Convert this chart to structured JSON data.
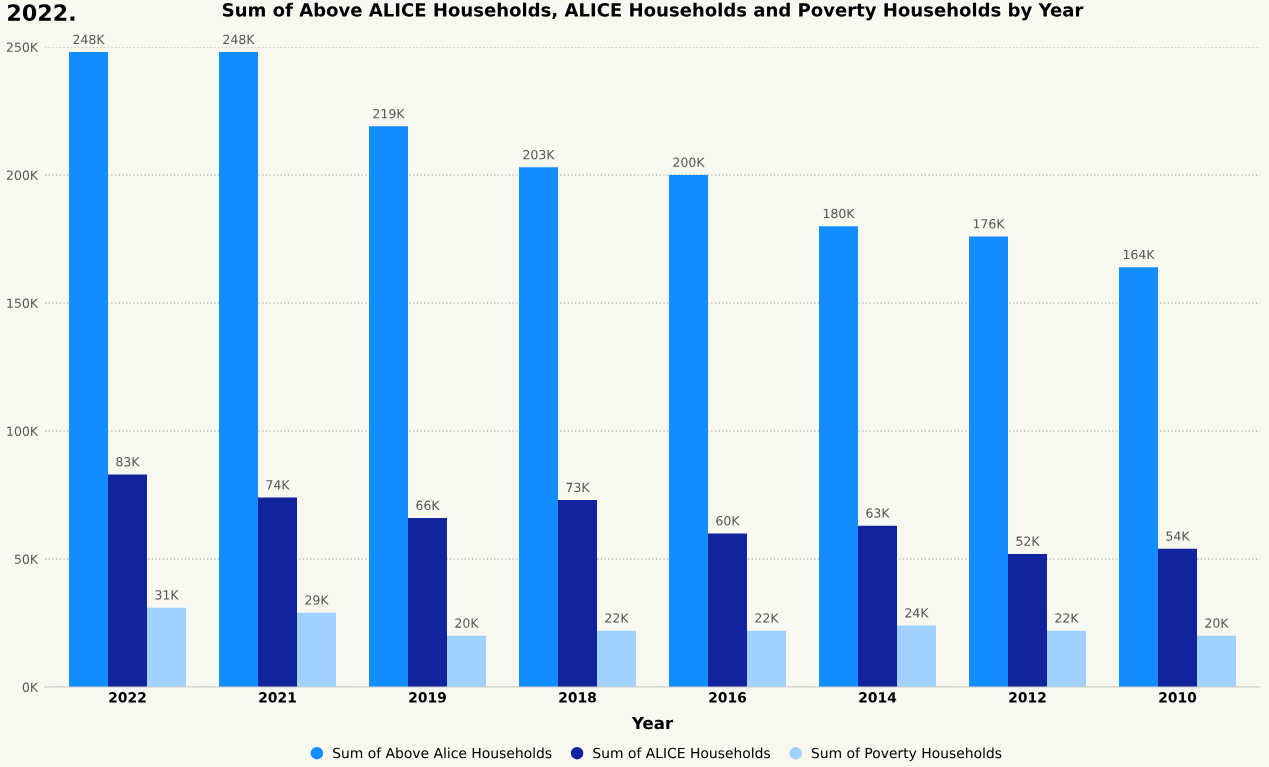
{
  "chart_data": {
    "type": "bar",
    "title": "Sum of Above ALICE Households, ALICE Households and Poverty Households by Year",
    "xlabel": "Year",
    "categories": [
      "2022",
      "2021",
      "2019",
      "2018",
      "2016",
      "2014",
      "2012",
      "2010"
    ],
    "series": [
      {
        "name": "Sum of Above Alice Households",
        "color": "#118dff",
        "values": [
          248,
          248,
          219,
          203,
          200,
          180,
          176,
          164
        ],
        "value_labels": [
          "248K",
          "248K",
          "219K",
          "203K",
          "200K",
          "180K",
          "176K",
          "164K"
        ]
      },
      {
        "name": "Sum of ALICE Households",
        "color": "#12239e",
        "values": [
          83,
          74,
          66,
          73,
          60,
          63,
          52,
          54
        ],
        "value_labels": [
          "83K",
          "74K",
          "66K",
          "73K",
          "60K",
          "63K",
          "52K",
          "54K"
        ]
      },
      {
        "name": "Sum of Poverty Households",
        "color": "#a0d1ff",
        "values": [
          31,
          29,
          20,
          22,
          22,
          24,
          22,
          20
        ],
        "value_labels": [
          "31K",
          "29K",
          "20K",
          "22K",
          "22K",
          "24K",
          "22K",
          "20K"
        ]
      }
    ],
    "ylim": [
      0,
      250
    ],
    "yticks": [
      {
        "value": 0,
        "label": "0K"
      },
      {
        "value": 50,
        "label": "50K"
      },
      {
        "value": 100,
        "label": "100K"
      },
      {
        "value": 150,
        "label": "150K"
      },
      {
        "value": 200,
        "label": "200K"
      },
      {
        "value": 250,
        "label": "250K"
      }
    ],
    "grid": "y",
    "legend": "bottom",
    "annotations": [
      "2022."
    ]
  }
}
